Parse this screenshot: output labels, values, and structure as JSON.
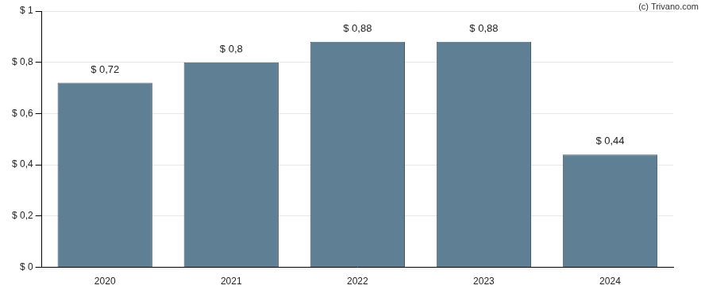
{
  "chart_data": {
    "type": "bar",
    "annotations": [
      "(c) Trivano.com"
    ],
    "categories": [
      "2020",
      "2021",
      "2022",
      "2023",
      "2024"
    ],
    "values": [
      0.72,
      0.8,
      0.88,
      0.88,
      0.44
    ],
    "value_labels": [
      "$ 0,72",
      "$ 0,8",
      "$ 0,88",
      "$ 0,88",
      "$ 0,44"
    ],
    "color": "#5f7f94",
    "ylim": [
      0,
      1
    ],
    "yticks": [
      {
        "value": 0,
        "label": "$ 0"
      },
      {
        "value": 0.2,
        "label": "$ 0,2"
      },
      {
        "value": 0.4,
        "label": "$ 0,4"
      },
      {
        "value": 0.6,
        "label": "$ 0,6"
      },
      {
        "value": 0.8,
        "label": "$ 0,8"
      },
      {
        "value": 1,
        "label": "$ 1"
      }
    ],
    "grid": true,
    "data_labels": true
  }
}
